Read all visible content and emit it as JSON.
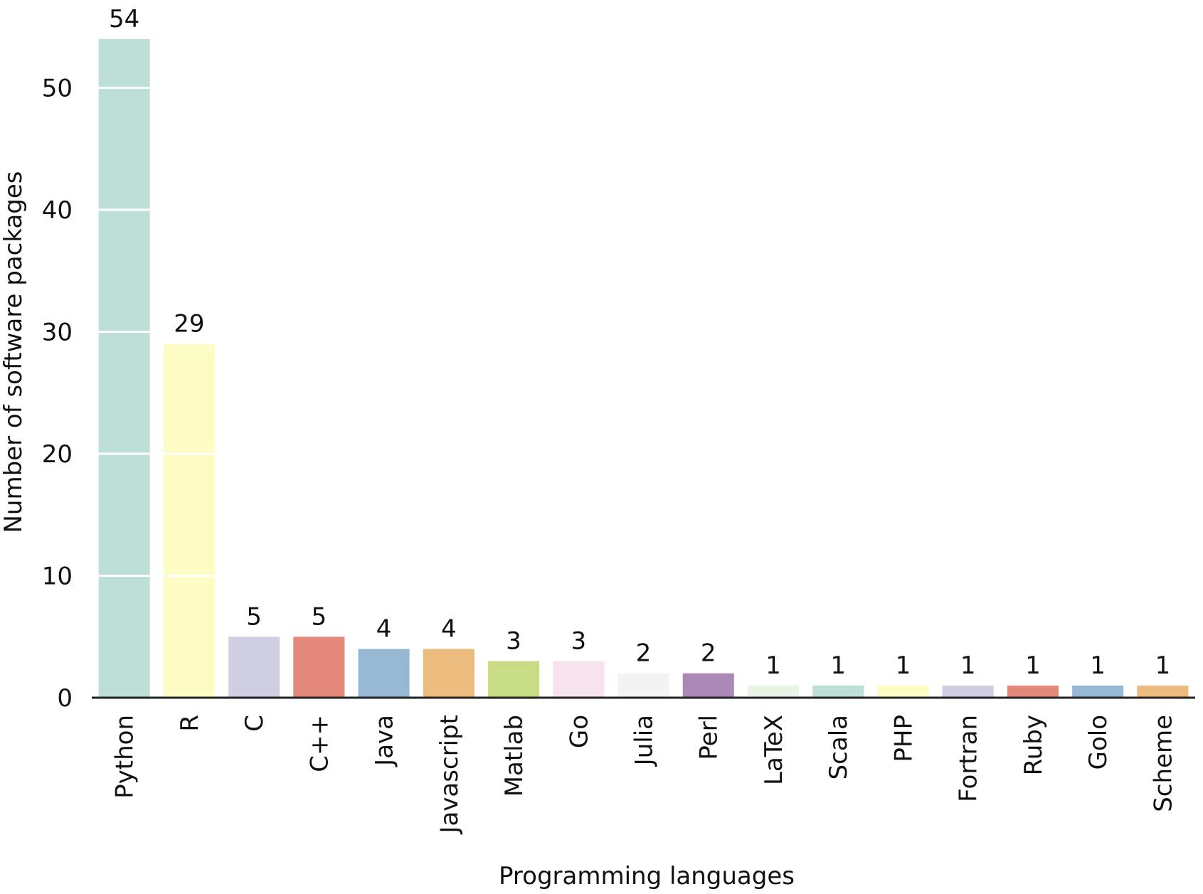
{
  "chart_data": {
    "type": "bar",
    "title": "",
    "xlabel": "Programming languages",
    "ylabel": "Number of software packages",
    "categories": [
      "Python",
      "R",
      "C",
      "C++",
      "Java",
      "Javascript",
      "Matlab",
      "Go",
      "Julia",
      "Perl",
      "LaTeX",
      "Scala",
      "PHP",
      "Fortran",
      "Ruby",
      "Golo",
      "Scheme"
    ],
    "values": [
      54,
      29,
      5,
      5,
      4,
      4,
      3,
      3,
      2,
      2,
      1,
      1,
      1,
      1,
      1,
      1,
      1
    ],
    "value_labels": [
      "54",
      "29",
      "5",
      "5",
      "4",
      "4",
      "3",
      "3",
      "2",
      "2",
      "1",
      "1",
      "1",
      "1",
      "1",
      "1",
      "1"
    ],
    "colors": [
      "#bddfd7",
      "#fdfcc4",
      "#d0cee3",
      "#e4887b",
      "#97b8d4",
      "#ecbb7e",
      "#c7dc85",
      "#f6e3ee",
      "#f3f3f3",
      "#aa89b9",
      "#eaf4e4",
      "#bddfd7",
      "#fdfcc4",
      "#d0cee3",
      "#e4887b",
      "#97b8d4",
      "#ecbb7e"
    ],
    "yticks": [
      0,
      10,
      20,
      30,
      40,
      50
    ],
    "ytick_labels": [
      "0",
      "10",
      "20",
      "30",
      "40",
      "50"
    ],
    "ylim": [
      0,
      55
    ],
    "grid": "horizontal white gridlines drawn over bars",
    "legend": "none"
  }
}
